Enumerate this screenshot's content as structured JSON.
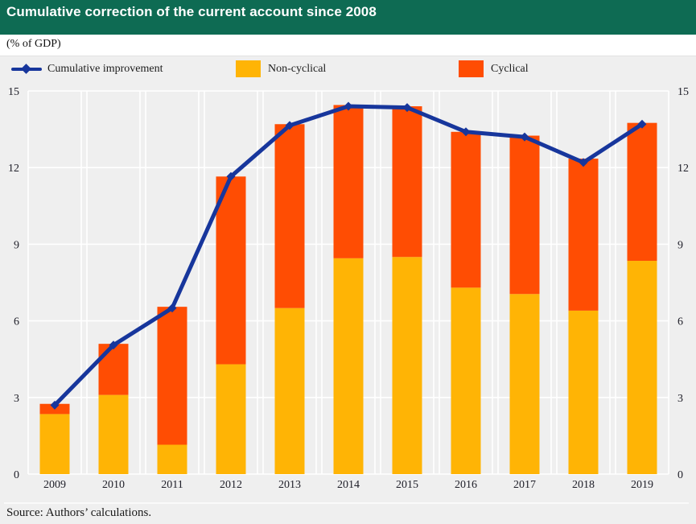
{
  "header": {
    "title": "Cumulative correction of the current account since 2008",
    "bg_color": "#0E6B53"
  },
  "unit_label": "(% of GDP)",
  "legend": {
    "items": [
      {
        "label": "Cumulative improvement",
        "type": "line",
        "color": "#17369C"
      },
      {
        "label": "Non-cyclical",
        "type": "swatch",
        "color": "#FFB405"
      },
      {
        "label": "Cyclical",
        "type": "swatch",
        "color": "#FF4D03"
      }
    ]
  },
  "source": "Source: Authors’ calculations.",
  "colors": {
    "page_bg": "#EFEFEF",
    "gridline": "#FFFFFF",
    "header_green": "#0E6B53",
    "line_blue": "#17369C",
    "non_cyclical_yellow": "#FFB405",
    "cyclical_orange": "#FF4D03"
  },
  "chart_data": {
    "type": "bar",
    "subtype": "stacked-bars-with-line-overlay",
    "title": "Cumulative correction of the current account since 2008",
    "xlabel": "",
    "ylabel": "(% of GDP)",
    "categories": [
      "2009",
      "2010",
      "2011",
      "2012",
      "2013",
      "2014",
      "2015",
      "2016",
      "2017",
      "2018",
      "2019"
    ],
    "series": [
      {
        "name": "Non-cyclical",
        "type": "bar",
        "stack": "total",
        "color": "#FFB405",
        "values": [
          2.35,
          3.1,
          1.15,
          4.3,
          6.5,
          8.45,
          8.5,
          7.3,
          7.05,
          6.4,
          8.35
        ]
      },
      {
        "name": "Cyclical",
        "type": "bar",
        "stack": "total",
        "color": "#FF4D03",
        "values": [
          0.4,
          2.0,
          5.4,
          7.35,
          7.2,
          6.0,
          5.9,
          6.1,
          6.2,
          5.95,
          5.4
        ]
      },
      {
        "name": "Cumulative improvement",
        "type": "line",
        "color": "#17369C",
        "marker": "diamond",
        "values": [
          2.7,
          5.05,
          6.5,
          11.65,
          13.65,
          14.4,
          14.35,
          13.4,
          13.2,
          12.2,
          13.7
        ]
      }
    ],
    "stacked_totals": [
      2.75,
      5.1,
      6.55,
      11.65,
      13.7,
      14.45,
      14.4,
      13.4,
      13.25,
      12.35,
      13.75
    ],
    "ylim": [
      0,
      15
    ],
    "yticks": [
      0,
      3,
      6,
      9,
      12,
      15
    ],
    "y_axis_sides": [
      "left",
      "right"
    ],
    "grid": "white gridlines on gray background",
    "legend_position": "top"
  }
}
